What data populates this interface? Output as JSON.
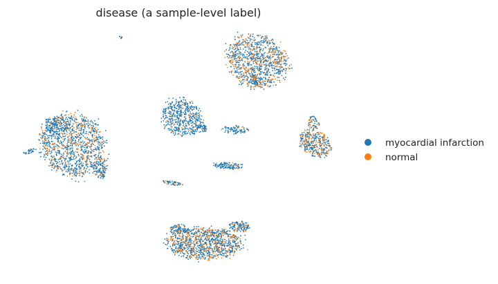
{
  "chart_data": {
    "type": "scatter",
    "title": "disease (a sample-level label)",
    "xlabel": "",
    "ylabel": "",
    "axes_visible": false,
    "legend_position": "right",
    "colors": {
      "myocardial infarction": "#1f77b4",
      "normal": "#ff7f0e"
    },
    "legend": [
      {
        "label": "myocardial infarction",
        "color": "#1f77b4"
      },
      {
        "label": "normal",
        "color": "#ff7f0e"
      }
    ],
    "clusters": [
      {
        "id": "top-right",
        "normal_fraction": 0.25
      },
      {
        "id": "left-large",
        "normal_fraction": 0.2
      },
      {
        "id": "center",
        "normal_fraction": 0.07
      },
      {
        "id": "center-arc-top",
        "normal_fraction": 0.05
      },
      {
        "id": "center-arc-bottom",
        "normal_fraction": 0.05
      },
      {
        "id": "right",
        "normal_fraction": 0.3
      },
      {
        "id": "bottom",
        "normal_fraction": 0.25
      },
      {
        "id": "left-small",
        "normal_fraction": 0.05
      },
      {
        "id": "small-center",
        "normal_fraction": 0.12
      },
      {
        "id": "tiny-top",
        "normal_fraction": 0.0
      }
    ]
  }
}
